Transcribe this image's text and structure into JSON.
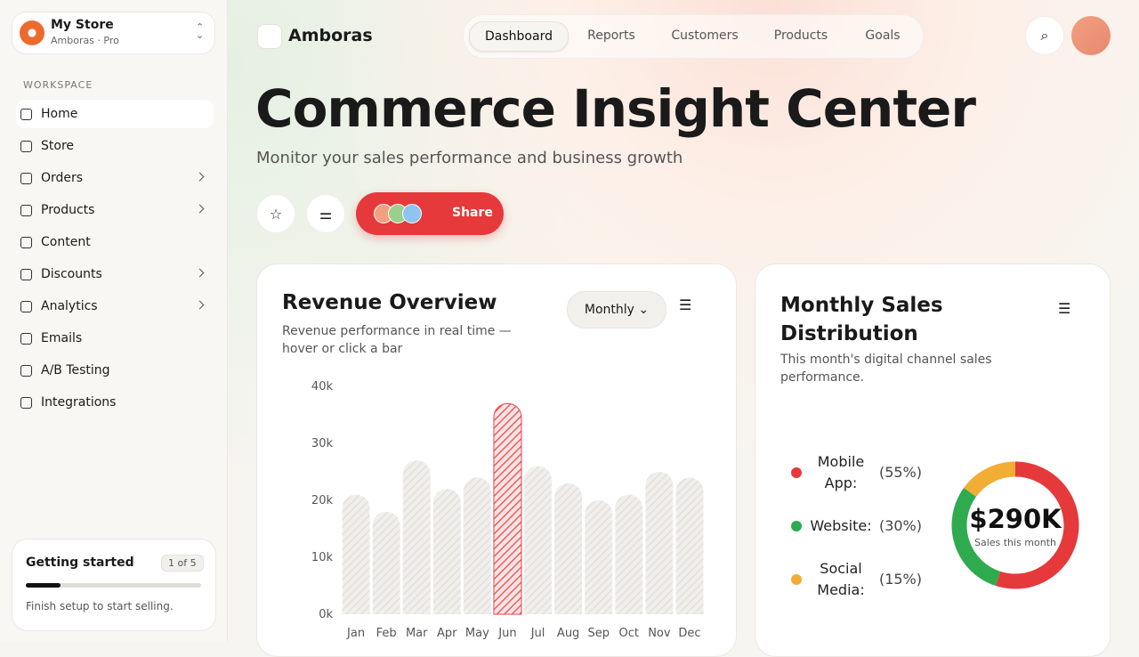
{
  "store": {
    "name": "My Store",
    "plan": "Amboras · Pro"
  },
  "sidebar": {
    "section": "WORKSPACE",
    "items": [
      {
        "label": "Home",
        "expandable": false
      },
      {
        "label": "Store",
        "expandable": false
      },
      {
        "label": "Orders",
        "expandable": true
      },
      {
        "label": "Products",
        "expandable": true
      },
      {
        "label": "Content",
        "expandable": false
      },
      {
        "label": "Discounts",
        "expandable": true
      },
      {
        "label": "Analytics",
        "expandable": true
      },
      {
        "label": "Emails",
        "expandable": false
      },
      {
        "label": "A/B Testing",
        "expandable": false
      },
      {
        "label": "Integrations",
        "expandable": false
      }
    ]
  },
  "getting_started": {
    "title": "Getting started",
    "step": "1 of 5",
    "progress": 20,
    "note": "Finish setup to start selling."
  },
  "header": {
    "brand": "Amboras",
    "tabs": [
      "Dashboard",
      "Reports",
      "Customers",
      "Products",
      "Goals"
    ]
  },
  "hero": {
    "title": "Commerce Insight Center",
    "subtitle": "Monitor your sales performance and business growth",
    "share": "Share"
  },
  "revenue_chart": {
    "type": "bar",
    "title": "Revenue Overview",
    "subtitle": "Revenue performance in real time — hover or click a bar",
    "period": "Monthly",
    "categories": [
      "Jan",
      "Feb",
      "Mar",
      "Apr",
      "May",
      "Jun",
      "Jul",
      "Aug",
      "Sep",
      "Oct",
      "Nov",
      "Dec"
    ],
    "values": [
      21000,
      18000,
      27000,
      22000,
      24000,
      37000,
      26000,
      23000,
      20000,
      21000,
      25000,
      24000
    ],
    "ylim": [
      0,
      40000
    ],
    "yticks": [
      {
        "value": 0,
        "label": "0k"
      },
      {
        "value": 10000,
        "label": "10k"
      },
      {
        "value": 20000,
        "label": "20k"
      },
      {
        "value": 30000,
        "label": "30k"
      },
      {
        "value": 40000,
        "label": "40k"
      }
    ],
    "highlight": "Jun",
    "color": "#e0ddd9",
    "highlight_color": "#e5484d"
  },
  "sales_chart": {
    "type": "donut",
    "title": "Monthly Sales Distribution",
    "subtitle": "This month's digital channel sales performance.",
    "categories": [
      "Mobile App:",
      "Website:",
      "Social Media:"
    ],
    "values": [
      55,
      30,
      15
    ],
    "value_labels": [
      "(55%)",
      "(30%)",
      "(15%)"
    ],
    "colors": [
      "#e5393b",
      "#2eaa4f",
      "#f2ad35"
    ],
    "center_value": "$290K",
    "center_label": "Sales this month"
  }
}
